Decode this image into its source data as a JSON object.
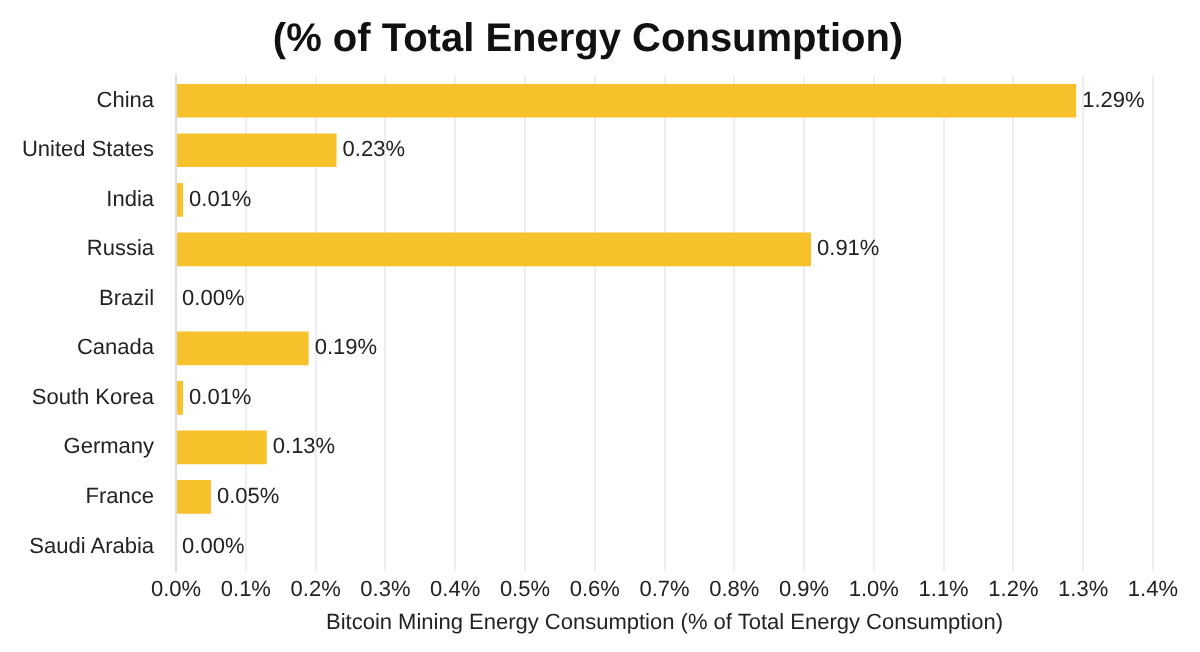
{
  "chart_data": {
    "type": "bar",
    "orientation": "horizontal",
    "title": "(% of Total Energy Consumption)",
    "xlabel": "Bitcoin Mining Energy Consumption (% of Total Energy Consumption)",
    "categories": [
      "China",
      "United States",
      "India",
      "Russia",
      "Brazil",
      "Canada",
      "South Korea",
      "Germany",
      "France",
      "Saudi Arabia"
    ],
    "values": [
      1.29,
      0.23,
      0.01,
      0.91,
      0.0,
      0.19,
      0.01,
      0.13,
      0.05,
      0.0
    ],
    "value_labels": [
      "1.29%",
      "0.23%",
      "0.01%",
      "0.91%",
      "0.00%",
      "0.19%",
      "0.01%",
      "0.13%",
      "0.05%",
      "0.00%"
    ],
    "color": "#f7c12b",
    "xlim": [
      0,
      1.4
    ],
    "xticks": [
      {
        "value": 0,
        "label": "0.0%"
      },
      {
        "value": 0.1,
        "label": "0.1%"
      },
      {
        "value": 0.2,
        "label": "0.2%"
      },
      {
        "value": 0.3,
        "label": "0.3%"
      },
      {
        "value": 0.4,
        "label": "0.4%"
      },
      {
        "value": 0.5,
        "label": "0.5%"
      },
      {
        "value": 0.6,
        "label": "0.6%"
      },
      {
        "value": 0.7,
        "label": "0.7%"
      },
      {
        "value": 0.8,
        "label": "0.8%"
      },
      {
        "value": 0.9,
        "label": "0.9%"
      },
      {
        "value": 1.0,
        "label": "1.0%"
      },
      {
        "value": 1.1,
        "label": "1.1%"
      },
      {
        "value": 1.2,
        "label": "1.2%"
      },
      {
        "value": 1.3,
        "label": "1.3%"
      },
      {
        "value": 1.4,
        "label": "1.4%"
      }
    ],
    "grid": "x",
    "legend": false
  }
}
